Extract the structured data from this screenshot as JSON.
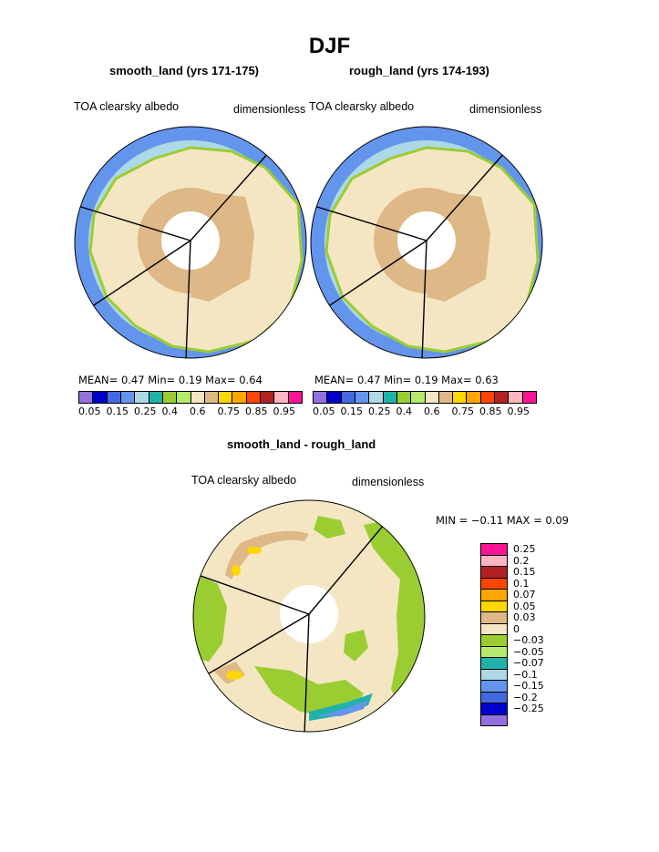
{
  "figure": {
    "title": "DJF",
    "panels": [
      {
        "subtitle": "smooth_land (yrs 171-175)",
        "left_label": "TOA clearsky albedo",
        "right_label": "dimensionless",
        "stats": "MEAN=    0.47   Min=     0.19   Max=     0.64"
      },
      {
        "subtitle": "rough_land (yrs 174-193)",
        "left_label": "TOA clearsky albedo",
        "right_label": "dimensionless",
        "stats": "MEAN=    0.47   Min=     0.19   Max=     0.63"
      }
    ],
    "colorbar": {
      "colors": [
        "#9370db",
        "#0000cd",
        "#4169e1",
        "#6495ed",
        "#add8e6",
        "#20b2aa",
        "#9acd32",
        "#b4eb6e",
        "#f5e6c3",
        "#deb887",
        "#ffd700",
        "#ffa500",
        "#ff4500",
        "#b22222",
        "#ffb6c1",
        "#ff1493"
      ],
      "labels": [
        "0.05",
        "0.15",
        "0.25",
        "0.4",
        "0.6",
        "0.75",
        "0.85",
        "0.95"
      ]
    },
    "diff": {
      "subtitle": "smooth_land - rough_land",
      "left_label": "TOA clearsky albedo",
      "right_label": "dimensionless",
      "stats": "MIN =   −0.11  MAX =     0.09",
      "colors": [
        "#ff1493",
        "#ffb6c1",
        "#b22222",
        "#ff4500",
        "#ffa500",
        "#ffd700",
        "#deb887",
        "#f5e6c3",
        "#9acd32",
        "#b4eb6e",
        "#20b2aa",
        "#add8e6",
        "#6495ed",
        "#4169e1",
        "#0000cd",
        "#9370db"
      ],
      "labels": [
        "0.25",
        "0.2",
        "0.15",
        "0.1",
        "0.07",
        "0.05",
        "0.03",
        "0",
        "−0.03",
        "−0.05",
        "−0.07",
        "−0.1",
        "−0.15",
        "−0.2",
        "−0.25"
      ]
    }
  }
}
